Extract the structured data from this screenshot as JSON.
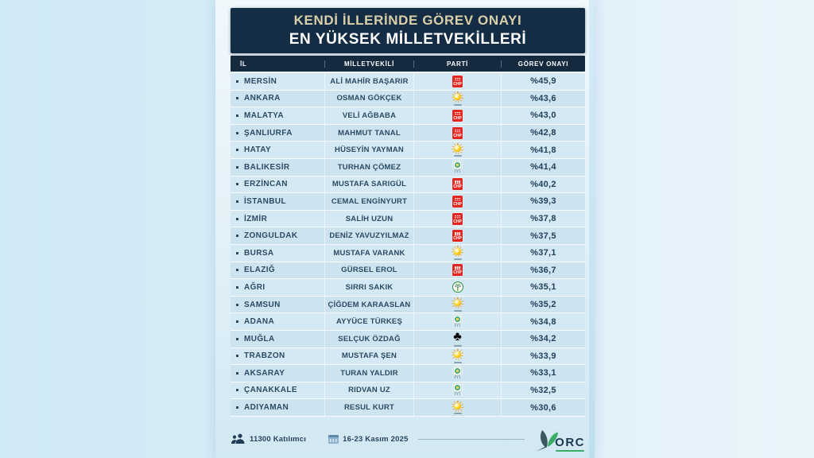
{
  "title": {
    "line1": "KENDİ İLLERİNDE GÖREV ONAYI",
    "line2": "EN YÜKSEK MİLLETVEKİLLERİ"
  },
  "table": {
    "headers": [
      "İL",
      "MİLLETVEKİLİ",
      "PARTİ",
      "GÖREV ONAYI"
    ],
    "rows": [
      {
        "il": "MERSİN",
        "mv": "ALİ MAHİR BAŞARIR",
        "party": "chp",
        "pct": "%45,9"
      },
      {
        "il": "ANKARA",
        "mv": "OSMAN GÖKÇEK",
        "party": "akp",
        "pct": "%43,6"
      },
      {
        "il": "MALATYA",
        "mv": "VELİ AĞBABA",
        "party": "chp",
        "pct": "%43,0"
      },
      {
        "il": "ŞANLIURFA",
        "mv": "MAHMUT TANAL",
        "party": "chp",
        "pct": "%42,8"
      },
      {
        "il": "HATAY",
        "mv": "HÜSEYİN YAYMAN",
        "party": "akp",
        "pct": "%41,8"
      },
      {
        "il": "BALIKESİR",
        "mv": "TURHAN ÇÖMEZ",
        "party": "iyi",
        "pct": "%41,4"
      },
      {
        "il": "ERZİNCAN",
        "mv": "MUSTAFA SARIGÜL",
        "party": "chp",
        "pct": "%40,2"
      },
      {
        "il": "İSTANBUL",
        "mv": "CEMAL ENGİNYURT",
        "party": "chp",
        "pct": "%39,3"
      },
      {
        "il": "İZMİR",
        "mv": "SALİH UZUN",
        "party": "chp",
        "pct": "%37,8"
      },
      {
        "il": "ZONGULDAK",
        "mv": "DENİZ YAVUZYILMAZ",
        "party": "chp",
        "pct": "%37,5"
      },
      {
        "il": "BURSA",
        "mv": "MUSTAFA VARANK",
        "party": "akp",
        "pct": "%37,1"
      },
      {
        "il": "ELAZIĞ",
        "mv": "GÜRSEL EROL",
        "party": "chp",
        "pct": "%36,7"
      },
      {
        "il": "AĞRI",
        "mv": "SIRRI SAKIK",
        "party": "dem",
        "pct": "%35,1"
      },
      {
        "il": "SAMSUN",
        "mv": "ÇİĞDEM KARAASLAN",
        "party": "akp",
        "pct": "%35,2"
      },
      {
        "il": "ADANA",
        "mv": "AYYÜCE TÜRKEŞ",
        "party": "iyi",
        "pct": "%34,8"
      },
      {
        "il": "MUĞLA",
        "mv": "SELÇUK ÖZDAĞ",
        "party": "gelecek",
        "pct": "%34,2"
      },
      {
        "il": "TRABZON",
        "mv": "MUSTAFA ŞEN",
        "party": "akp",
        "pct": "%33,9"
      },
      {
        "il": "AKSARAY",
        "mv": "TURAN YALDIR",
        "party": "iyi",
        "pct": "%33,1"
      },
      {
        "il": "ÇANAKKALE",
        "mv": "RIDVAN UZ",
        "party": "iyi",
        "pct": "%32,5"
      },
      {
        "il": "ADIYAMAN",
        "mv": "RESUL KURT",
        "party": "akp",
        "pct": "%30,6"
      }
    ]
  },
  "parties": {
    "chp": {
      "name": "CHP",
      "short": "CHP",
      "color": "#e52620"
    },
    "akp": {
      "name": "AK Parti",
      "color": "#f59f00"
    },
    "iyi": {
      "name": "İYİ Parti",
      "short": "İYİ",
      "color": "#40a987"
    },
    "dem": {
      "name": "DEM Parti",
      "color": "#27913e"
    },
    "gelecek": {
      "name": "Gelecek Partisi",
      "glyph": "♣",
      "color": "#2f9e4f"
    }
  },
  "footer": {
    "participants": "11300 Katılımcı",
    "date_range": "16-23 Kasım 2025",
    "brand": "ORC"
  },
  "colors": {
    "header_navy": "#15293f",
    "panel_blue": "#d5e9f4",
    "accent_cream": "#d9cfa9",
    "text_navy": "#2b4a63",
    "orc_green": "#39ac66"
  },
  "chart_data": {
    "type": "table",
    "title": "KENDİ İLLERİNDE GÖREV ONAYI EN YÜKSEK MİLLETVEKİLLERİ",
    "columns": [
      "İL",
      "MİLLETVEKİLİ",
      "PARTİ",
      "GÖREV ONAYI (%)"
    ],
    "rows": [
      [
        "MERSİN",
        "ALİ MAHİR BAŞARIR",
        "CHP",
        45.9
      ],
      [
        "ANKARA",
        "OSMAN GÖKÇEK",
        "AK Parti",
        43.6
      ],
      [
        "MALATYA",
        "VELİ AĞBABA",
        "CHP",
        43.0
      ],
      [
        "ŞANLIURFA",
        "MAHMUT TANAL",
        "CHP",
        42.8
      ],
      [
        "HATAY",
        "HÜSEYİN YAYMAN",
        "AK Parti",
        41.8
      ],
      [
        "BALIKESİR",
        "TURHAN ÇÖMEZ",
        "İYİ Parti",
        41.4
      ],
      [
        "ERZİNCAN",
        "MUSTAFA SARIGÜL",
        "CHP",
        40.2
      ],
      [
        "İSTANBUL",
        "CEMAL ENGİNYURT",
        "CHP",
        39.3
      ],
      [
        "İZMİR",
        "SALİH UZUN",
        "CHP",
        37.8
      ],
      [
        "ZONGULDAK",
        "DENİZ YAVUZYILMAZ",
        "CHP",
        37.5
      ],
      [
        "BURSA",
        "MUSTAFA VARANK",
        "AK Parti",
        37.1
      ],
      [
        "ELAZIĞ",
        "GÜRSEL EROL",
        "CHP",
        36.7
      ],
      [
        "AĞRI",
        "SIRRI SAKIK",
        "DEM Parti",
        35.1
      ],
      [
        "SAMSUN",
        "ÇİĞDEM KARAASLAN",
        "AK Parti",
        35.2
      ],
      [
        "ADANA",
        "AYYÜCE TÜRKEŞ",
        "İYİ Parti",
        34.8
      ],
      [
        "MUĞLA",
        "SELÇUK ÖZDAĞ",
        "Gelecek Partisi",
        34.2
      ],
      [
        "TRABZON",
        "MUSTAFA ŞEN",
        "AK Parti",
        33.9
      ],
      [
        "AKSARAY",
        "TURAN YALDIR",
        "İYİ Parti",
        33.1
      ],
      [
        "ÇANAKKALE",
        "RIDVAN UZ",
        "İYİ Parti",
        32.5
      ],
      [
        "ADIYAMAN",
        "RESUL KURT",
        "AK Parti",
        30.6
      ]
    ],
    "footnotes": [
      "11300 Katılımcı",
      "16-23 Kasım 2025",
      "ORC"
    ]
  }
}
